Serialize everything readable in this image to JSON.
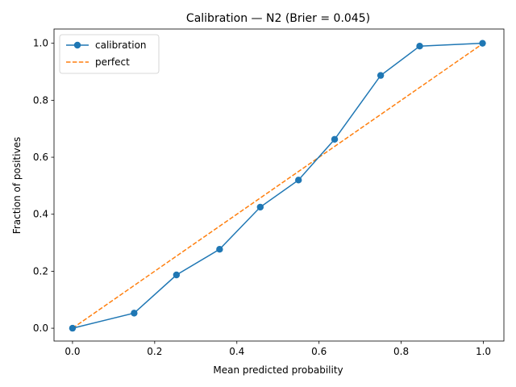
{
  "chart_data": {
    "type": "line",
    "title": "Calibration — N2  (Brier = 0.045)",
    "xlabel": "Mean predicted probability",
    "ylabel": "Fraction of positives",
    "xlim": [
      -0.045,
      1.05
    ],
    "ylim": [
      -0.045,
      1.05
    ],
    "xticks": [
      0.0,
      0.2,
      0.4,
      0.6,
      0.8,
      1.0
    ],
    "yticks": [
      0.0,
      0.2,
      0.4,
      0.6,
      0.8,
      1.0
    ],
    "xtick_labels": [
      "0.0",
      "0.2",
      "0.4",
      "0.6",
      "0.8",
      "1.0"
    ],
    "ytick_labels": [
      "0.0",
      "0.2",
      "0.4",
      "0.6",
      "0.8",
      "1.0"
    ],
    "grid": false,
    "legend_position": "top-left",
    "series": [
      {
        "name": "calibration",
        "color": "#1f77b4",
        "style": "solid",
        "marker": "circle",
        "x": [
          0.0,
          0.15,
          0.253,
          0.358,
          0.457,
          0.55,
          0.638,
          0.75,
          0.845,
          0.998
        ],
        "y": [
          0.0,
          0.053,
          0.187,
          0.277,
          0.425,
          0.52,
          0.663,
          0.887,
          0.99,
          1.0
        ]
      },
      {
        "name": "perfect",
        "color": "#ff7f0e",
        "style": "dashed",
        "marker": "none",
        "x": [
          0.0,
          1.0
        ],
        "y": [
          0.0,
          1.0
        ]
      }
    ]
  }
}
